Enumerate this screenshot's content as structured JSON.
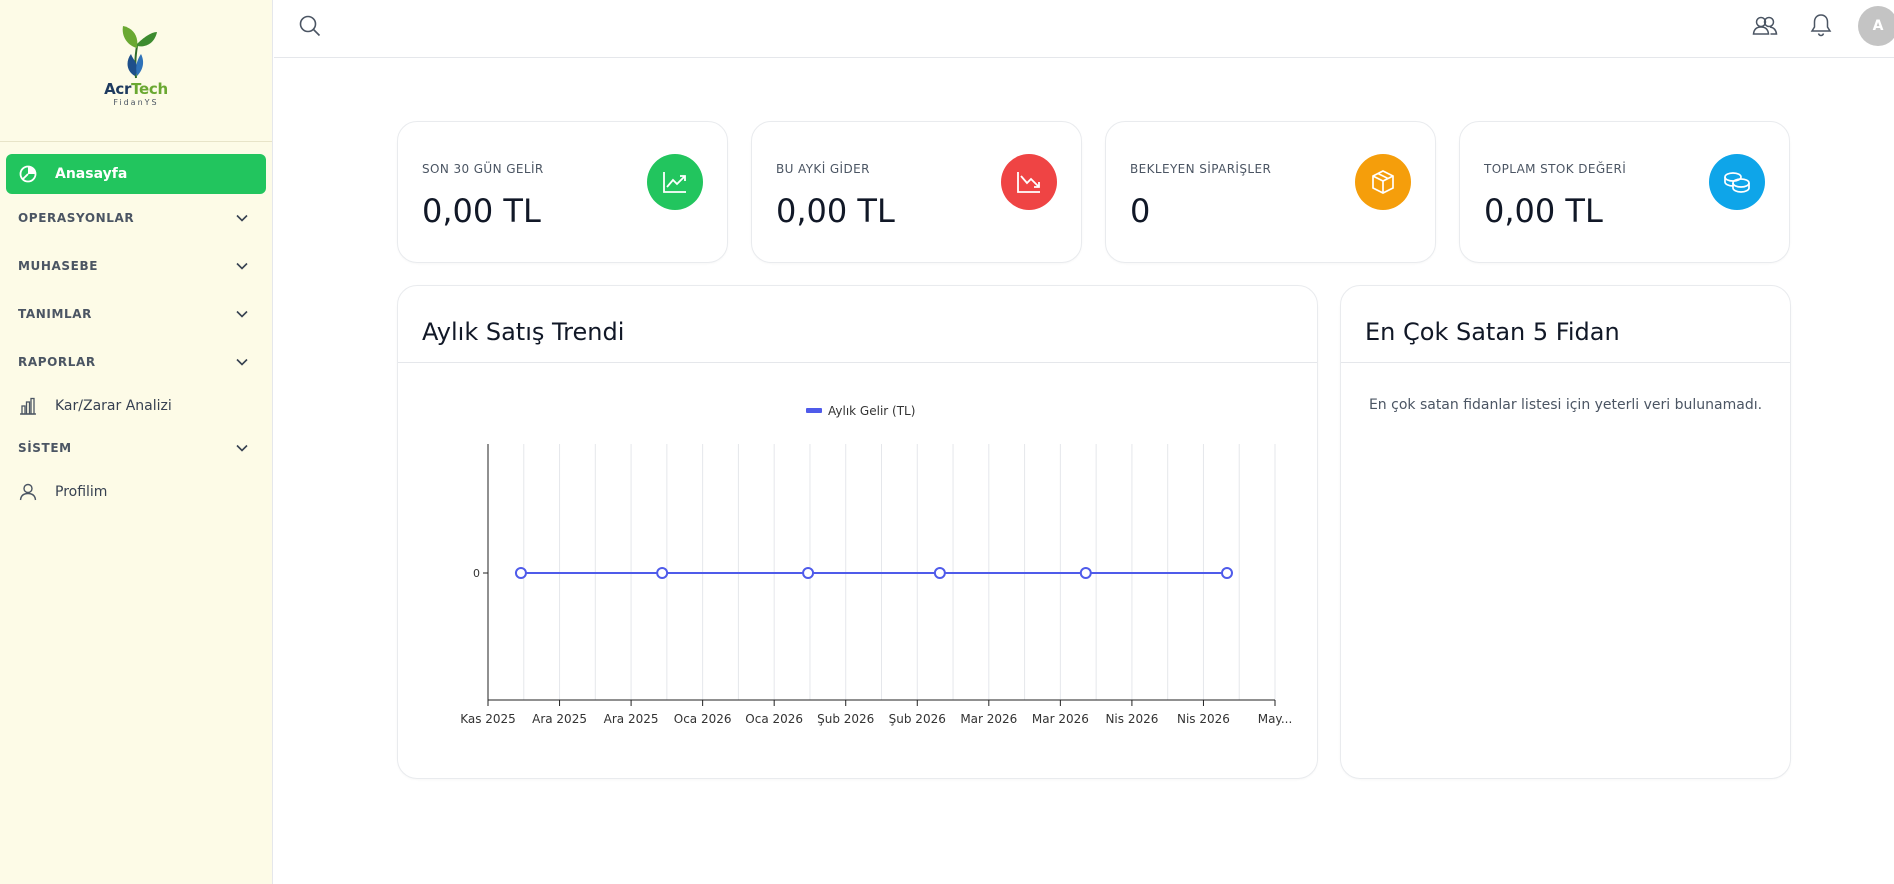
{
  "brand": {
    "name_part1": "Acr",
    "name_part2": "Tech",
    "subtitle": "FidanYS"
  },
  "sidebar": {
    "home": "Anasayfa",
    "sections": {
      "operations": "OPERASYONLAR",
      "accounting": "MUHASEBE",
      "definitions": "TANIMLAR",
      "reports": "RAPORLAR",
      "system": "SİSTEM"
    },
    "profit_loss": "Kar/Zarar Analizi",
    "profile": "Profilim"
  },
  "topbar": {
    "avatar_initial": "A"
  },
  "stats": [
    {
      "label": "SON 30 GÜN GELİR",
      "value": "0,00 TL",
      "color": "#22c55e",
      "icon": "trending-up-icon"
    },
    {
      "label": "BU AYKİ GİDER",
      "value": "0,00 TL",
      "color": "#ef4444",
      "icon": "trending-down-icon"
    },
    {
      "label": "BEKLEYEN SİPARİŞLER",
      "value": "0",
      "color": "#f59e0b",
      "icon": "package-icon"
    },
    {
      "label": "TOPLAM STOK DEĞERİ",
      "value": "0,00 TL",
      "color": "#0ea5e9",
      "icon": "coins-icon"
    }
  ],
  "sales_panel": {
    "title": "Aylık Satış Trendi"
  },
  "top_panel": {
    "title": "En Çok Satan 5 Fidan",
    "empty_message": "En çok satan fidanlar listesi için yeterli veri bulunamadı."
  },
  "colors": {
    "accent": "#22c55e",
    "series": "#4f5bea",
    "sidebar_bg": "#fdfbe7"
  },
  "chart_data": {
    "type": "line",
    "title": "",
    "xlabel": "",
    "ylabel": "",
    "legend": "top-center",
    "grid": true,
    "x_tick_labels": [
      "Kas 2025",
      "Ara 2025",
      "Ara 2025",
      "Oca 2026",
      "Oca 2026",
      "Şub 2026",
      "Şub 2026",
      "Mar 2026",
      "Mar 2026",
      "Nis 2026",
      "Nis 2026",
      "May..."
    ],
    "y_tick_labels": [
      "0"
    ],
    "series": [
      {
        "name": "Aylık Gelir (TL)",
        "x": [
          "2025-11-08",
          "2025-12-08",
          "2026-01-08",
          "2026-02-05",
          "2026-03-08",
          "2026-04-07"
        ],
        "y": [
          0,
          0,
          0,
          0,
          0,
          0
        ]
      }
    ]
  }
}
